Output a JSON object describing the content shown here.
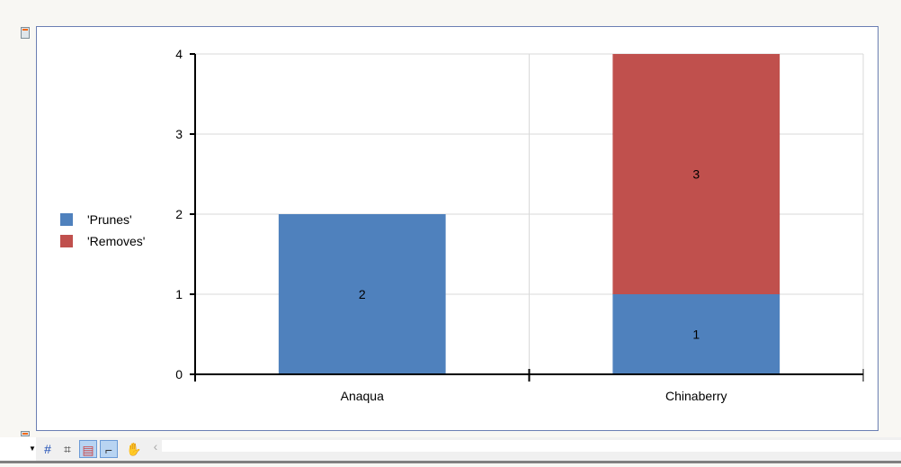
{
  "chart_data": {
    "type": "bar",
    "stacked": true,
    "categories": [
      "Anaqua",
      "Chinaberry"
    ],
    "series": [
      {
        "name": "'Prunes'",
        "values": [
          2,
          1
        ],
        "color": "#4f81bd"
      },
      {
        "name": "'Removes'",
        "values": [
          0,
          3
        ],
        "color": "#c0504d"
      }
    ],
    "data_labels": true,
    "ylim": [
      0,
      4
    ],
    "yticks": [
      0,
      1,
      2,
      3,
      4
    ],
    "grid": true,
    "legend": "left",
    "xlabel": "",
    "ylabel": ""
  },
  "toolbar": {
    "icons": [
      "dropdown-arrow-icon",
      "grid-icon",
      "crop-icon",
      "report-icon",
      "ruler-icon",
      "hand-icon",
      "chevron-left-icon"
    ]
  }
}
